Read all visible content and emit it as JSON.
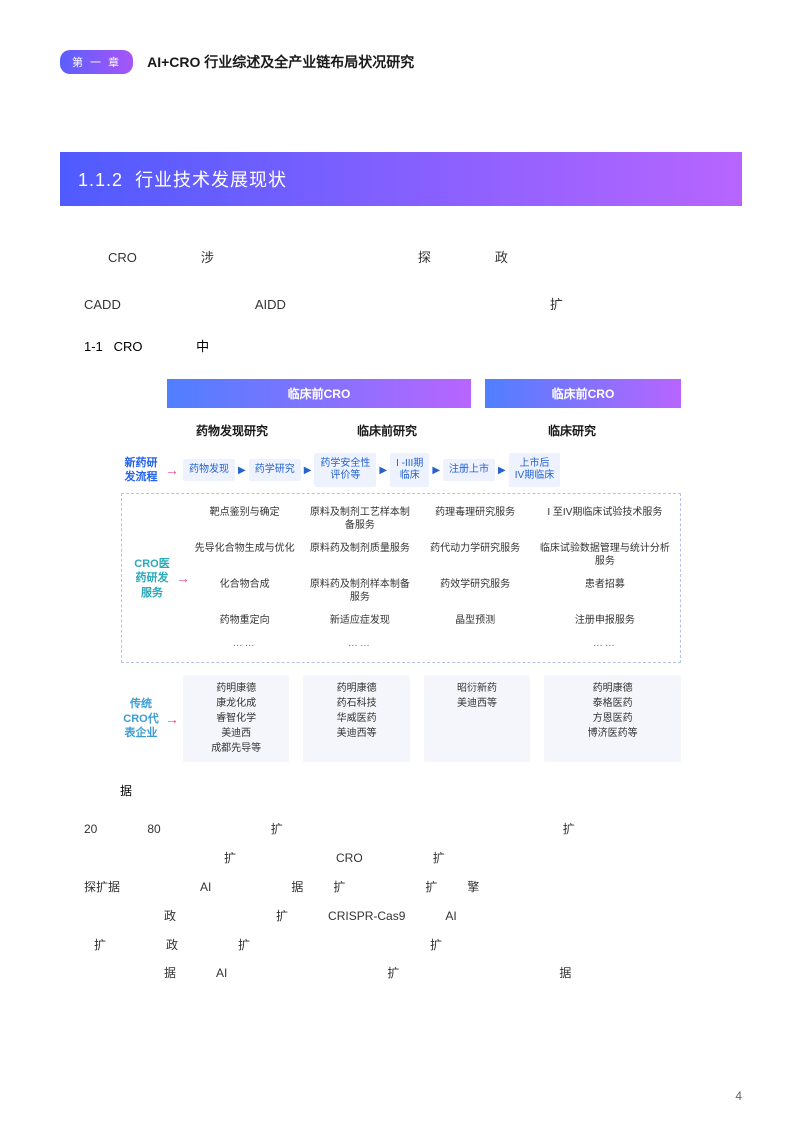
{
  "header": {
    "chapter_badge": "第 一 章",
    "title": "AI+CRO 行业综述及全产业链布局状况研究"
  },
  "section": {
    "number": "1.1.2",
    "title": "行业技术发展现状"
  },
  "intro_fragments": {
    "r1a": "CRO",
    "r1b": "涉",
    "r1c": "探",
    "r1d": "政",
    "r2a": "CADD",
    "r2b": "AIDD",
    "r2c": "扩",
    "r3a": "1-1",
    "r3b": "CRO",
    "r3c": "中"
  },
  "diagram": {
    "phase_headers": [
      "临床前CRO",
      "临床前CRO"
    ],
    "categories": [
      "药物发现研究",
      "临床前研究",
      "临床研究"
    ],
    "row_labels": {
      "flow": "新药研发流程",
      "services": "CRO医药研发服务",
      "companies": "传统CRO代表企业"
    },
    "row_label_colors": {
      "flow": "#2563eb",
      "services": "#2aa9b8",
      "companies": "#3b9dd4"
    },
    "arrow_color": "#ec4899",
    "flow_box_bg": "#eef2ff",
    "flow_text_color": "#2563cb",
    "flow_boxes": [
      "药物发现",
      "药学研究",
      "药学安全性\n评价等",
      "I -III期\n临床",
      "注册上市",
      "上市后\nIV期临床"
    ],
    "services_grid": [
      [
        "靶点鉴别与确定",
        "原料及制剂工艺样本制备服务",
        "药理毒理研究服务",
        "I 至IV期临床试验技术服务"
      ],
      [
        "先导化合物生成与优化",
        "原料药及制剂质量服务",
        "药代动力学研究服务",
        "临床试验数据管理与统计分析服务"
      ],
      [
        "化合物合成",
        "原料药及制剂样本制备服务",
        "药效学研究服务",
        "患者招募"
      ],
      [
        "药物重定向",
        "新适应症发现",
        "晶型预测",
        "注册申报服务"
      ],
      [
        "……",
        "……",
        "",
        "……"
      ]
    ],
    "companies_cols": [
      "药明康德\n康龙化成\n睿智化学\n美迪西\n成都先导等",
      "药明康德\n药石科技\n华威医药\n美迪西等",
      "昭衍新药\n美迪西等",
      "药明康德\n泰格医药\n方恩医药\n博济医药等"
    ]
  },
  "source_note": "据",
  "bottom_fragments": {
    "l1": [
      "20",
      "80",
      "扩",
      "扩"
    ],
    "l2": [
      "扩",
      "CRO",
      "扩"
    ],
    "l3": [
      "探扩据",
      "AI",
      "据",
      "扩",
      "扩",
      "擎"
    ],
    "l4": [
      "政",
      "扩",
      "CRISPR-Cas9",
      "AI"
    ],
    "l5": [
      "扩",
      "政",
      "扩",
      "扩"
    ],
    "l6": [
      "据",
      "AI",
      "扩",
      "据"
    ]
  },
  "page_number": "4",
  "colors": {
    "banner_gradient_from": "#4f5bff",
    "banner_gradient_to": "#b865ff",
    "badge_gradient_from": "#5b5fff",
    "badge_gradient_to": "#a855f7",
    "dashed_border": "#b0c4e8"
  }
}
